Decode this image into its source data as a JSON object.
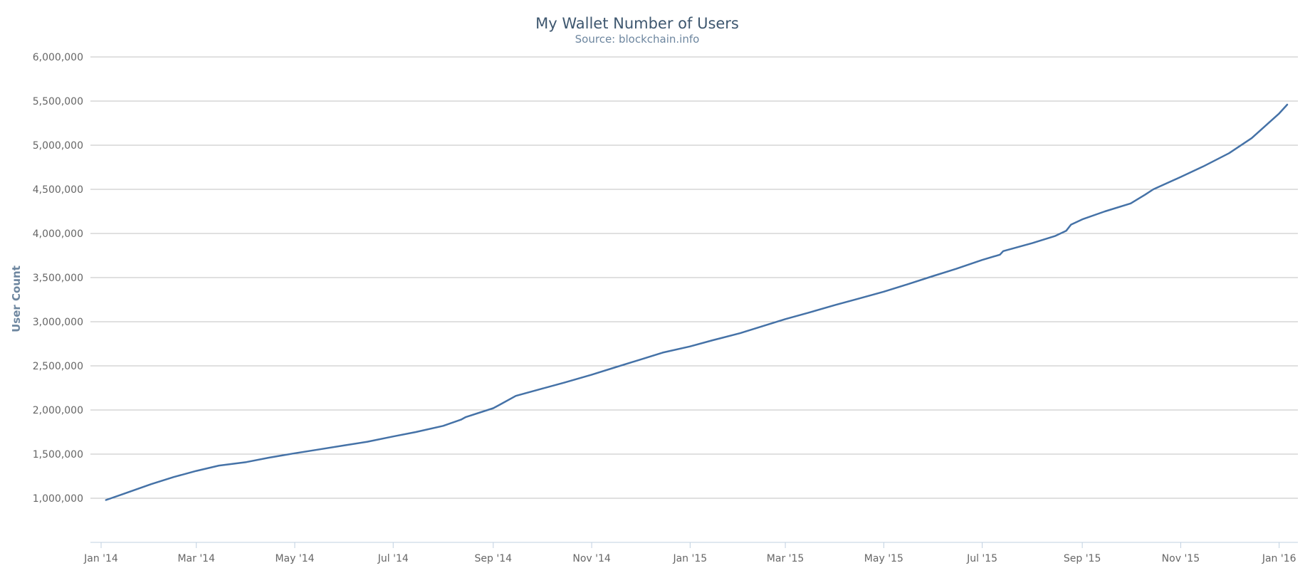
{
  "chart_data": {
    "type": "line",
    "title": "My Wallet Number of Users",
    "subtitle": "Source: blockchain.info",
    "xlabel": "",
    "ylabel": "User Count",
    "ylim": [
      500000,
      6000000
    ],
    "yticks": [
      1000000,
      1500000,
      2000000,
      2500000,
      3000000,
      3500000,
      4000000,
      4500000,
      5000000,
      5500000,
      6000000
    ],
    "ytick_labels": [
      "1,000,000",
      "1,500,000",
      "2,000,000",
      "2,500,000",
      "3,000,000",
      "3,500,000",
      "4,000,000",
      "4,500,000",
      "5,000,000",
      "5,500,000",
      "6,000,000"
    ],
    "xlim": [
      "2014-01-01",
      "2016-01-06"
    ],
    "xticks": [
      "2014-01-01",
      "2014-03-01",
      "2014-05-01",
      "2014-07-01",
      "2014-09-01",
      "2014-11-01",
      "2015-01-01",
      "2015-03-01",
      "2015-05-01",
      "2015-07-01",
      "2015-09-01",
      "2015-11-01",
      "2016-01-01"
    ],
    "xtick_labels": [
      "Jan '14",
      "Mar '14",
      "May '14",
      "Jul '14",
      "Sep '14",
      "Nov '14",
      "Jan '15",
      "Mar '15",
      "May '15",
      "Jul '15",
      "Sep '15",
      "Nov '15",
      "Jan '16"
    ],
    "grid": true,
    "legend": false,
    "series_color": "#4572a7",
    "series": [
      {
        "x": [
          "2014-01-04",
          "2014-01-15",
          "2014-02-01",
          "2014-02-15",
          "2014-03-01",
          "2014-03-15",
          "2014-04-01",
          "2014-04-15",
          "2014-05-01",
          "2014-05-15",
          "2014-06-01",
          "2014-06-15",
          "2014-07-01",
          "2014-07-15",
          "2014-08-01",
          "2014-08-12",
          "2014-08-15",
          "2014-09-01",
          "2014-09-05",
          "2014-09-15",
          "2014-10-01",
          "2014-10-15",
          "2014-11-01",
          "2014-11-15",
          "2014-12-01",
          "2014-12-15",
          "2015-01-01",
          "2015-01-15",
          "2015-02-01",
          "2015-02-15",
          "2015-03-01",
          "2015-03-15",
          "2015-04-01",
          "2015-04-15",
          "2015-05-01",
          "2015-05-15",
          "2015-06-01",
          "2015-06-15",
          "2015-07-01",
          "2015-07-12",
          "2015-07-14",
          "2015-08-01",
          "2015-08-15",
          "2015-08-22",
          "2015-08-25",
          "2015-09-01",
          "2015-09-15",
          "2015-10-01",
          "2015-10-10",
          "2015-10-15",
          "2015-11-01",
          "2015-11-15",
          "2015-12-01",
          "2015-12-15",
          "2016-01-01",
          "2016-01-06"
        ],
        "y": [
          980000,
          1050000,
          1160000,
          1240000,
          1310000,
          1370000,
          1410000,
          1460000,
          1510000,
          1550000,
          1600000,
          1640000,
          1700000,
          1750000,
          1820000,
          1890000,
          1920000,
          2020000,
          2060000,
          2160000,
          2240000,
          2310000,
          2400000,
          2480000,
          2570000,
          2650000,
          2720000,
          2790000,
          2870000,
          2950000,
          3030000,
          3100000,
          3190000,
          3260000,
          3340000,
          3420000,
          3520000,
          3600000,
          3700000,
          3760000,
          3800000,
          3890000,
          3970000,
          4030000,
          4100000,
          4160000,
          4250000,
          4340000,
          4440000,
          4500000,
          4640000,
          4760000,
          4910000,
          5080000,
          5360000,
          5460000
        ]
      }
    ]
  }
}
